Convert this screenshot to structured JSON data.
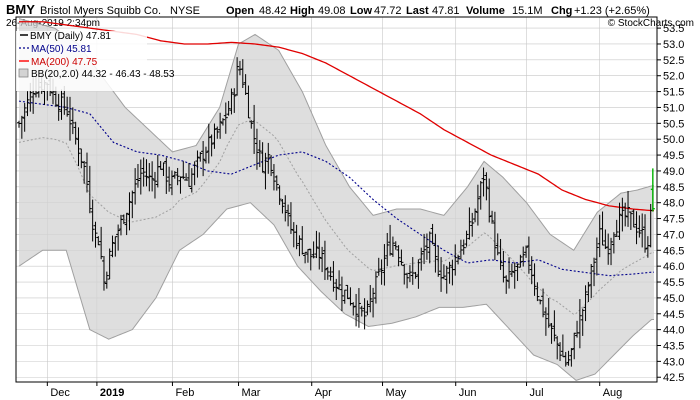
{
  "header": {
    "symbol": "BMY",
    "company": "Bristol Myers Squibb Co.",
    "exchange": "NYSE",
    "date": "26-Aug-2019 2:34pm",
    "open_label": "Open",
    "open": "48.42",
    "high_label": "High",
    "high": "49.08",
    "low_label": "Low",
    "low": "47.72",
    "last_label": "Last",
    "last": "47.81",
    "volume_label": "Volume",
    "volume": "15.1M",
    "chg_label": "Chg",
    "chg": "+1.23 (+2.65%)",
    "watermark": "© StockCharts.com"
  },
  "legend": {
    "price": "BMY (Daily) 47.81",
    "ma50": "MA(50) 45.81",
    "ma200": "MA(200) 47.75",
    "bb": "BB(20,2.0) 44.32 - 46.43 - 48.53"
  },
  "colors": {
    "price": "#000000",
    "ma50": "#00008b",
    "ma200": "#ff0000",
    "bb_fill": "#d3d3d3",
    "bb_line": "#a0a0a0",
    "bb_mid": "#a0a0a0",
    "last_up": "#00b000",
    "grid": "#c8c8c8"
  },
  "chart_data": {
    "type": "ohlc",
    "ylim": [
      42.35,
      53.85
    ],
    "y_ticks": [
      42.5,
      43.0,
      43.5,
      44.0,
      44.5,
      45.0,
      45.5,
      46.0,
      46.5,
      47.0,
      47.5,
      48.0,
      48.5,
      49.0,
      49.5,
      50.0,
      50.5,
      51.0,
      51.5,
      52.0,
      52.5,
      53.0,
      53.5
    ],
    "x_ticks": [
      {
        "label": "Dec",
        "bold": false,
        "day": 12
      },
      {
        "label": "2019",
        "bold": true,
        "day": 33
      },
      {
        "label": "Feb",
        "bold": false,
        "day": 65
      },
      {
        "label": "Mar",
        "bold": false,
        "day": 93
      },
      {
        "label": "Apr",
        "bold": false,
        "day": 124
      },
      {
        "label": "May",
        "bold": false,
        "day": 154
      },
      {
        "label": "Jun",
        "bold": false,
        "day": 185
      },
      {
        "label": "Jul",
        "bold": false,
        "day": 215
      },
      {
        "label": "Aug",
        "bold": false,
        "day": 246
      }
    ],
    "x_range": [
      0,
      269
    ],
    "close_anchors": [
      [
        0,
        50.5
      ],
      [
        6,
        51.6
      ],
      [
        12,
        51.8
      ],
      [
        16,
        51.2
      ],
      [
        20,
        51.0
      ],
      [
        24,
        50.0
      ],
      [
        28,
        49.0
      ],
      [
        30,
        48.0
      ],
      [
        32,
        47.0
      ],
      [
        34,
        46.8
      ],
      [
        36,
        45.5
      ],
      [
        38,
        46.2
      ],
      [
        40,
        46.8
      ],
      [
        44,
        47.5
      ],
      [
        48,
        48.3
      ],
      [
        52,
        49.0
      ],
      [
        56,
        48.7
      ],
      [
        60,
        49.2
      ],
      [
        64,
        48.6
      ],
      [
        68,
        48.9
      ],
      [
        72,
        48.7
      ],
      [
        76,
        49.3
      ],
      [
        80,
        49.8
      ],
      [
        84,
        50.2
      ],
      [
        88,
        50.8
      ],
      [
        91,
        51.5
      ],
      [
        93,
        52.4
      ],
      [
        95,
        51.8
      ],
      [
        97,
        51.0
      ],
      [
        99,
        50.2
      ],
      [
        101,
        49.7
      ],
      [
        103,
        49.2
      ],
      [
        106,
        49.5
      ],
      [
        109,
        48.6
      ],
      [
        112,
        48.0
      ],
      [
        115,
        47.2
      ],
      [
        118,
        46.8
      ],
      [
        121,
        46.5
      ],
      [
        124,
        46.3
      ],
      [
        127,
        46.4
      ],
      [
        130,
        46.0
      ],
      [
        133,
        45.6
      ],
      [
        136,
        45.3
      ],
      [
        139,
        45.1
      ],
      [
        142,
        44.8
      ],
      [
        145,
        44.5
      ],
      [
        147,
        44.4
      ],
      [
        150,
        45.2
      ],
      [
        153,
        45.8
      ],
      [
        156,
        46.5
      ],
      [
        159,
        46.8
      ],
      [
        162,
        46.2
      ],
      [
        165,
        45.6
      ],
      [
        168,
        45.8
      ],
      [
        171,
        46.4
      ],
      [
        174,
        46.8
      ],
      [
        177,
        46.0
      ],
      [
        180,
        45.7
      ],
      [
        183,
        46.0
      ],
      [
        186,
        46.4
      ],
      [
        189,
        46.8
      ],
      [
        192,
        47.4
      ],
      [
        195,
        48.3
      ],
      [
        197,
        48.9
      ],
      [
        200,
        47.4
      ],
      [
        203,
        46.2
      ],
      [
        206,
        45.4
      ],
      [
        209,
        45.8
      ],
      [
        212,
        46.0
      ],
      [
        215,
        46.4
      ],
      [
        218,
        45.6
      ],
      [
        221,
        44.8
      ],
      [
        224,
        44.2
      ],
      [
        227,
        43.7
      ],
      [
        230,
        43.2
      ],
      [
        232,
        42.9
      ],
      [
        234,
        43.3
      ],
      [
        236,
        44.0
      ],
      [
        238,
        44.4
      ],
      [
        240,
        45.0
      ],
      [
        243,
        46.0
      ],
      [
        246,
        47.0
      ],
      [
        249,
        46.5
      ],
      [
        252,
        47.2
      ],
      [
        255,
        47.5
      ],
      [
        258,
        47.6
      ],
      [
        261,
        47.3
      ],
      [
        264,
        47.0
      ],
      [
        266,
        46.58
      ],
      [
        268,
        47.81
      ]
    ],
    "ma50_anchors": [
      [
        0,
        51.2
      ],
      [
        20,
        51.0
      ],
      [
        30,
        50.8
      ],
      [
        40,
        49.9
      ],
      [
        50,
        49.6
      ],
      [
        60,
        49.5
      ],
      [
        70,
        49.3
      ],
      [
        80,
        49.0
      ],
      [
        90,
        48.9
      ],
      [
        100,
        49.2
      ],
      [
        110,
        49.5
      ],
      [
        120,
        49.6
      ],
      [
        130,
        49.3
      ],
      [
        140,
        48.8
      ],
      [
        150,
        48.1
      ],
      [
        160,
        47.5
      ],
      [
        170,
        47.0
      ],
      [
        180,
        46.5
      ],
      [
        190,
        46.1
      ],
      [
        200,
        46.2
      ],
      [
        210,
        46.1
      ],
      [
        220,
        46.2
      ],
      [
        230,
        45.9
      ],
      [
        240,
        45.8
      ],
      [
        250,
        45.7
      ],
      [
        260,
        45.75
      ],
      [
        268,
        45.81
      ]
    ],
    "ma200_anchors": [
      [
        0,
        53.7
      ],
      [
        10,
        53.7
      ],
      [
        20,
        53.6
      ],
      [
        30,
        53.5
      ],
      [
        40,
        53.4
      ],
      [
        50,
        53.3
      ],
      [
        60,
        53.1
      ],
      [
        70,
        53.0
      ],
      [
        80,
        53.0
      ],
      [
        90,
        53.05
      ],
      [
        100,
        53.0
      ],
      [
        110,
        52.9
      ],
      [
        120,
        52.7
      ],
      [
        130,
        52.4
      ],
      [
        140,
        52.0
      ],
      [
        150,
        51.6
      ],
      [
        160,
        51.2
      ],
      [
        170,
        50.8
      ],
      [
        180,
        50.3
      ],
      [
        190,
        49.9
      ],
      [
        200,
        49.5
      ],
      [
        210,
        49.2
      ],
      [
        220,
        48.9
      ],
      [
        230,
        48.4
      ],
      [
        240,
        48.1
      ],
      [
        250,
        47.9
      ],
      [
        260,
        47.8
      ],
      [
        268,
        47.75
      ]
    ],
    "bb_upper_anchors": [
      [
        0,
        53.8
      ],
      [
        15,
        53.5
      ],
      [
        25,
        53.0
      ],
      [
        35,
        52.0
      ],
      [
        45,
        51.0
      ],
      [
        55,
        50.3
      ],
      [
        65,
        49.6
      ],
      [
        75,
        49.8
      ],
      [
        85,
        51.0
      ],
      [
        93,
        53.0
      ],
      [
        100,
        53.3
      ],
      [
        110,
        52.8
      ],
      [
        120,
        51.5
      ],
      [
        130,
        49.8
      ],
      [
        140,
        48.5
      ],
      [
        150,
        47.6
      ],
      [
        160,
        47.8
      ],
      [
        170,
        47.8
      ],
      [
        180,
        47.6
      ],
      [
        190,
        48.5
      ],
      [
        197,
        49.3
      ],
      [
        205,
        48.8
      ],
      [
        215,
        48.0
      ],
      [
        225,
        47.0
      ],
      [
        235,
        46.5
      ],
      [
        245,
        47.7
      ],
      [
        255,
        48.3
      ],
      [
        262,
        48.4
      ],
      [
        268,
        48.53
      ]
    ],
    "bb_lower_anchors": [
      [
        0,
        46.0
      ],
      [
        10,
        46.5
      ],
      [
        20,
        46.5
      ],
      [
        30,
        44.0
      ],
      [
        38,
        43.7
      ],
      [
        48,
        44.0
      ],
      [
        58,
        45.0
      ],
      [
        68,
        46.5
      ],
      [
        78,
        47.0
      ],
      [
        88,
        47.8
      ],
      [
        98,
        48.0
      ],
      [
        108,
        47.3
      ],
      [
        118,
        46.0
      ],
      [
        128,
        45.2
      ],
      [
        138,
        44.5
      ],
      [
        148,
        44.1
      ],
      [
        158,
        44.2
      ],
      [
        168,
        44.4
      ],
      [
        178,
        44.7
      ],
      [
        188,
        44.7
      ],
      [
        198,
        44.8
      ],
      [
        208,
        44.0
      ],
      [
        218,
        43.2
      ],
      [
        228,
        42.9
      ],
      [
        236,
        42.4
      ],
      [
        244,
        42.6
      ],
      [
        252,
        43.2
      ],
      [
        260,
        43.8
      ],
      [
        268,
        44.32
      ]
    ]
  }
}
